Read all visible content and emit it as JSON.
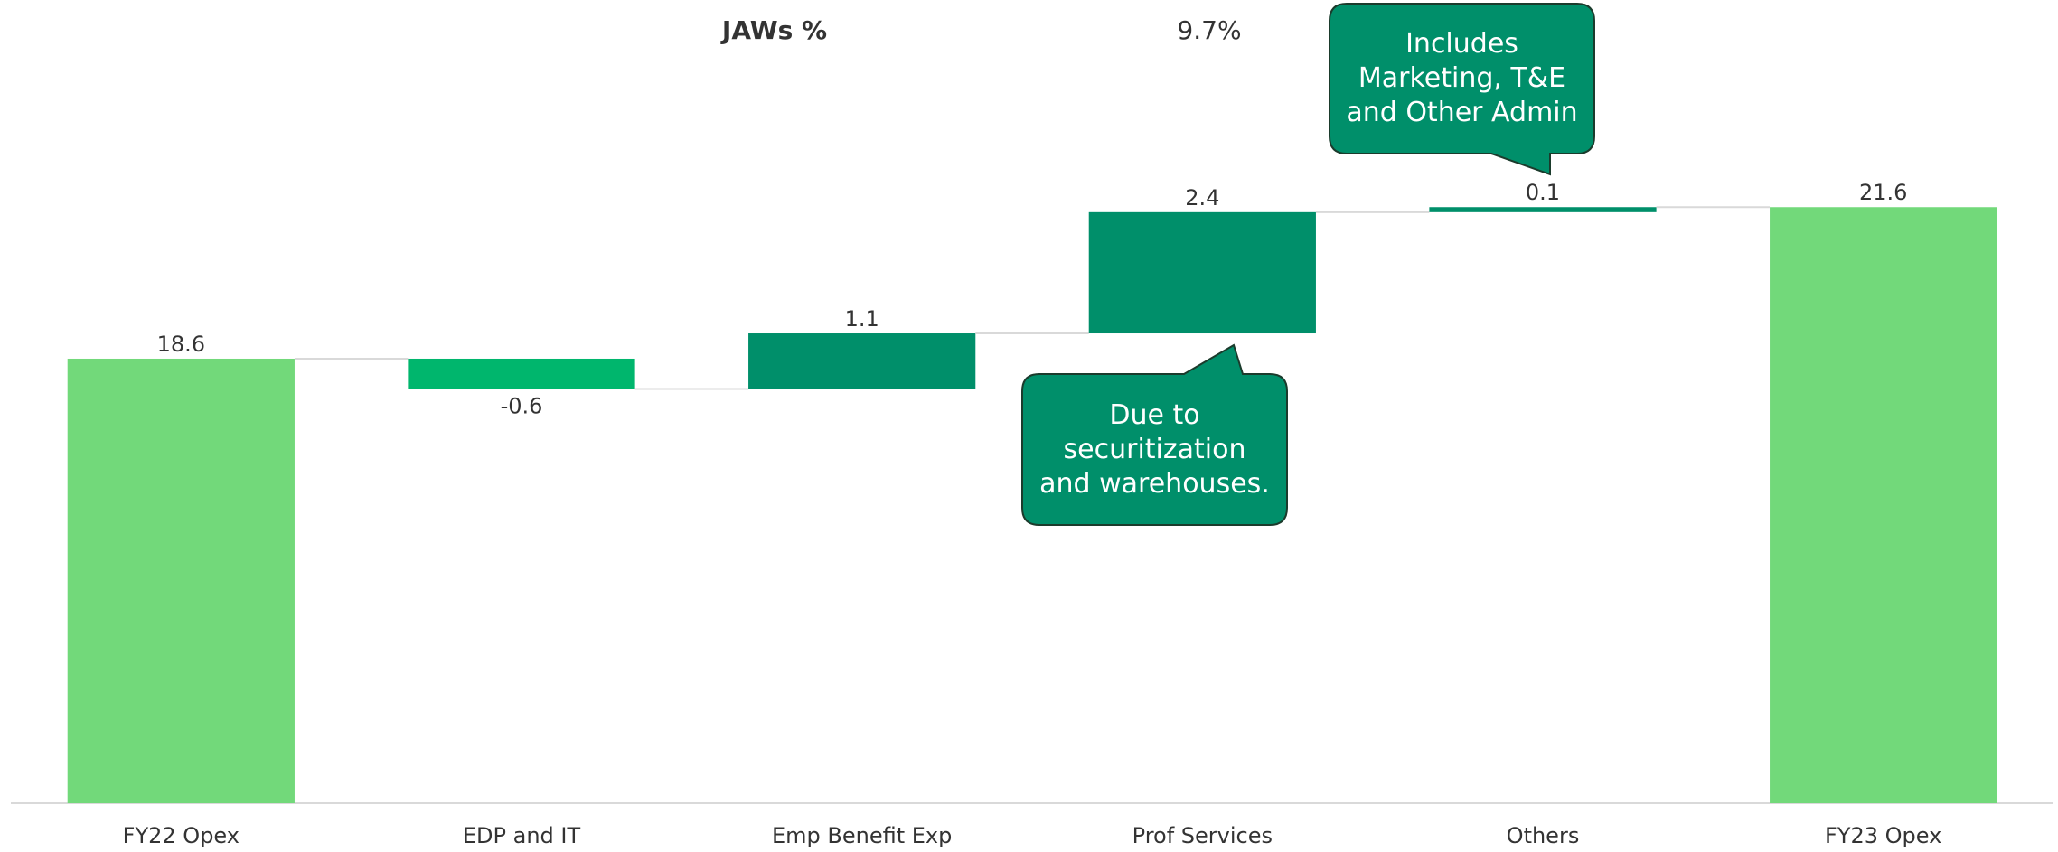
{
  "chart_data": {
    "type": "waterfall",
    "kpi_label": "JAWs %",
    "kpi_value": "9.7%",
    "categories": [
      "FY22 Opex",
      "EDP and IT",
      "Emp Benefit Exp",
      "Prof Services",
      "Others",
      "FY23 Opex"
    ],
    "values": [
      18.6,
      -0.6,
      1.1,
      2.4,
      0.1,
      21.6
    ],
    "measure": [
      "absolute",
      "relative",
      "relative",
      "relative",
      "relative",
      "total"
    ],
    "colors": {
      "total": "#72d97a",
      "increase": "#008f6a",
      "decrease": "#00b66d"
    },
    "ylim": [
      9.8,
      25.7
    ],
    "annotations": [
      {
        "text": "Includes Marketing, T&E and Other Admin",
        "category": 4
      },
      {
        "text": "Due to securitization and warehouses.",
        "category": 3
      }
    ]
  }
}
